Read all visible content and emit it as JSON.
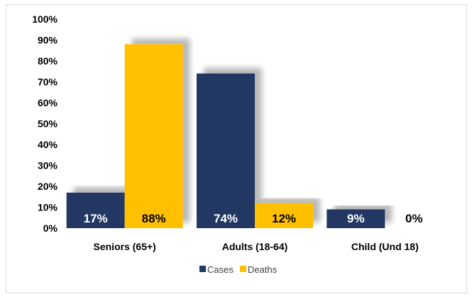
{
  "chart_data": {
    "type": "bar",
    "title": "",
    "xlabel": "",
    "ylabel": "",
    "ylim": [
      0,
      100
    ],
    "yticks": [
      "0%",
      "10%",
      "20%",
      "30%",
      "40%",
      "50%",
      "60%",
      "70%",
      "80%",
      "90%",
      "100%"
    ],
    "categories": [
      "Seniors (65+)",
      "Adults (18-64)",
      "Child (Und 18)"
    ],
    "series": [
      {
        "name": "Cases",
        "values": [
          17,
          74,
          9
        ],
        "labels": [
          "17%",
          "74%",
          "9%"
        ],
        "color": "#203864",
        "label_color": "#ffffff"
      },
      {
        "name": "Deaths",
        "values": [
          88,
          12,
          0
        ],
        "labels": [
          "88%",
          "12%",
          "0%"
        ],
        "color": "#ffc000",
        "label_color": "#000000"
      }
    ],
    "grid": false,
    "legend": "bottom"
  }
}
